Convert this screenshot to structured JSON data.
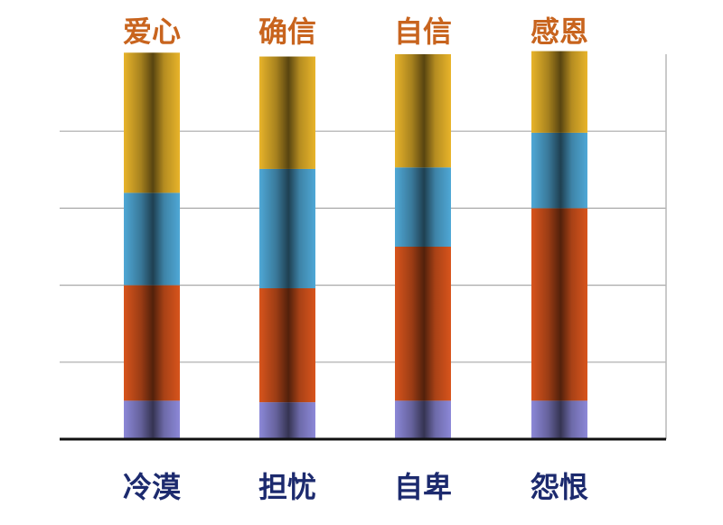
{
  "chart_data": {
    "type": "bar",
    "stacked": true,
    "categories": [
      "冷漠",
      "担忧",
      "自卑",
      "怨恨"
    ],
    "top_labels": [
      "爱心",
      "确信",
      "自信",
      "感恩"
    ],
    "series": [
      {
        "color": "#8c88d8",
        "values": [
          0.5,
          0.48,
          0.5,
          0.5
        ]
      },
      {
        "color": "#d8541c",
        "values": [
          1.5,
          1.48,
          2.0,
          2.5
        ]
      },
      {
        "color": "#4fa8d6",
        "values": [
          1.2,
          1.55,
          1.03,
          0.98
        ]
      },
      {
        "color": "#e8b42a",
        "values": [
          1.82,
          1.46,
          1.47,
          1.06
        ]
      }
    ],
    "ylim": [
      0,
      5
    ],
    "grid": true,
    "legend": "none"
  }
}
